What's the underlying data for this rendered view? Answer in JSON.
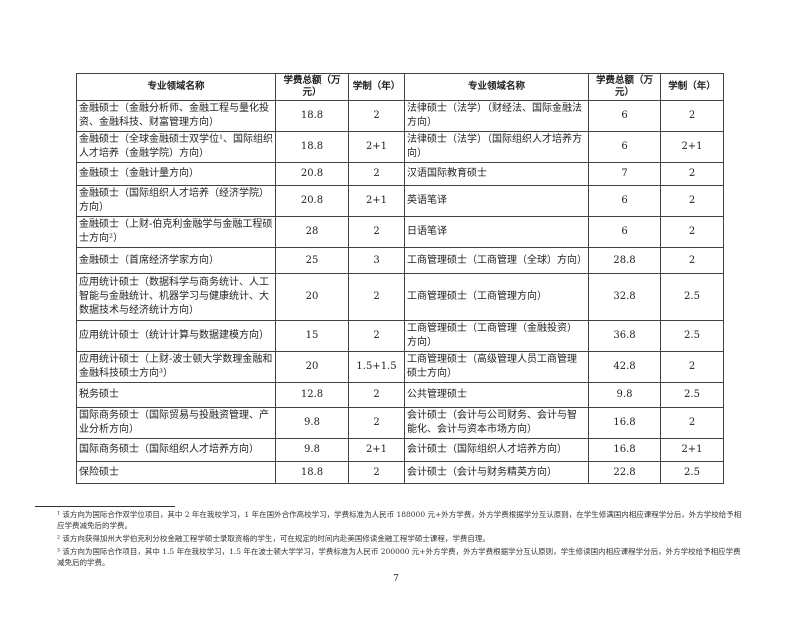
{
  "table": {
    "headers": [
      "专业领域名称",
      "学费总额（万元）",
      "学制（年）",
      "专业领域名称",
      "学费总额（万元）",
      "学制（年）"
    ],
    "rows": [
      {
        "left_name": "金融硕士（金融分析师、金融工程与量化投资、金融科技、财富管理方向）",
        "left_fee": "18.8",
        "left_years": "2",
        "right_name": "法律硕士（法学）（财经法、国际金融法方向）",
        "right_fee": "6",
        "right_years": "2"
      },
      {
        "left_name": "金融硕士（全球金融硕士双学位¹、国际组织人才培养（金融学院）方向）",
        "left_fee": "18.8",
        "left_years": "2+1",
        "right_name": "法律硕士（法学）（国际组织人才培养方向）",
        "right_fee": "6",
        "right_years": "2+1"
      },
      {
        "left_name": "金融硕士（金融计量方向）",
        "left_fee": "20.8",
        "left_years": "2",
        "right_name": "汉语国际教育硕士",
        "right_fee": "7",
        "right_years": "2"
      },
      {
        "left_name": "金融硕士（国际组织人才培养（经济学院）方向）",
        "left_fee": "20.8",
        "left_years": "2+1",
        "right_name": "英语笔译",
        "right_fee": "6",
        "right_years": "2"
      },
      {
        "left_name": "金融硕士（上财-伯克利金融学与金融工程硕士方向²）",
        "left_fee": "28",
        "left_years": "2",
        "right_name": "日语笔译",
        "right_fee": "6",
        "right_years": "2"
      },
      {
        "left_name": "金融硕士（首席经济学家方向）",
        "left_fee": "25",
        "left_years": "3",
        "right_name": "工商管理硕士（工商管理（全球）方向）",
        "right_fee": "28.8",
        "right_years": "2"
      },
      {
        "left_name": "应用统计硕士（数据科学与商务统计、人工智能与金融统计、机器学习与健康统计、大数据技术与经济统计方向）",
        "left_fee": "20",
        "left_years": "2",
        "right_name": "工商管理硕士（工商管理方向）",
        "right_fee": "32.8",
        "right_years": "2.5"
      },
      {
        "left_name": "应用统计硕士（统计计算与数据建模方向）",
        "left_fee": "15",
        "left_years": "2",
        "right_name": "工商管理硕士（工商管理（金融投资）方向）",
        "right_fee": "36.8",
        "right_years": "2.5"
      },
      {
        "left_name": "应用统计硕士（上财-波士顿大学数理金融和金融科技硕士方向³）",
        "left_fee": "20",
        "left_years": "1.5+1.5",
        "right_name": "工商管理硕士（高级管理人员工商管理硕士方向）",
        "right_fee": "42.8",
        "right_years": "2"
      },
      {
        "left_name": "税务硕士",
        "left_fee": "12.8",
        "left_years": "2",
        "right_name": "公共管理硕士",
        "right_fee": "9.8",
        "right_years": "2.5"
      },
      {
        "left_name": "国际商务硕士（国际贸易与投融资管理、产业分析方向）",
        "left_fee": "9.8",
        "left_years": "2",
        "right_name": "会计硕士（会计与公司财务、会计与智能化、会计与资本市场方向）",
        "right_fee": "16.8",
        "right_years": "2"
      },
      {
        "left_name": "国际商务硕士（国际组织人才培养方向）",
        "left_fee": "9.8",
        "left_years": "2+1",
        "right_name": "会计硕士（国际组织人才培养方向）",
        "right_fee": "16.8",
        "right_years": "2+1"
      },
      {
        "left_name": "保险硕士",
        "left_fee": "18.8",
        "left_years": "2",
        "right_name": "会计硕士（会计与财务精英方向）",
        "right_fee": "22.8",
        "right_years": "2.5"
      }
    ]
  },
  "footnotes": [
    "¹ 该方向为国际合作双学位项目，其中 2 年在我校学习，1 年在国外合作高校学习，学费标准为人民币 188000 元+外方学费，外方学费根据学分互认原则，在学生修满国内相应课程学分后，外方学校给予相应学费减免后的学费。",
    "² 该方向获得加州大学伯克利分校金融工程学硕士录取资格的学生，可在规定的时间内赴美国修读金融工程学硕士课程，学费自理。",
    "³ 该方向为国际合作项目，其中 1.5 年在我校学习，1.5 年在波士顿大学学习，学费标准为人民币 200000 元+外方学费，外方学费根据学分互认原则，学生修读国内相应课程学分后，外方学校给予相应学费减免后的学费。"
  ],
  "page_number": "7"
}
